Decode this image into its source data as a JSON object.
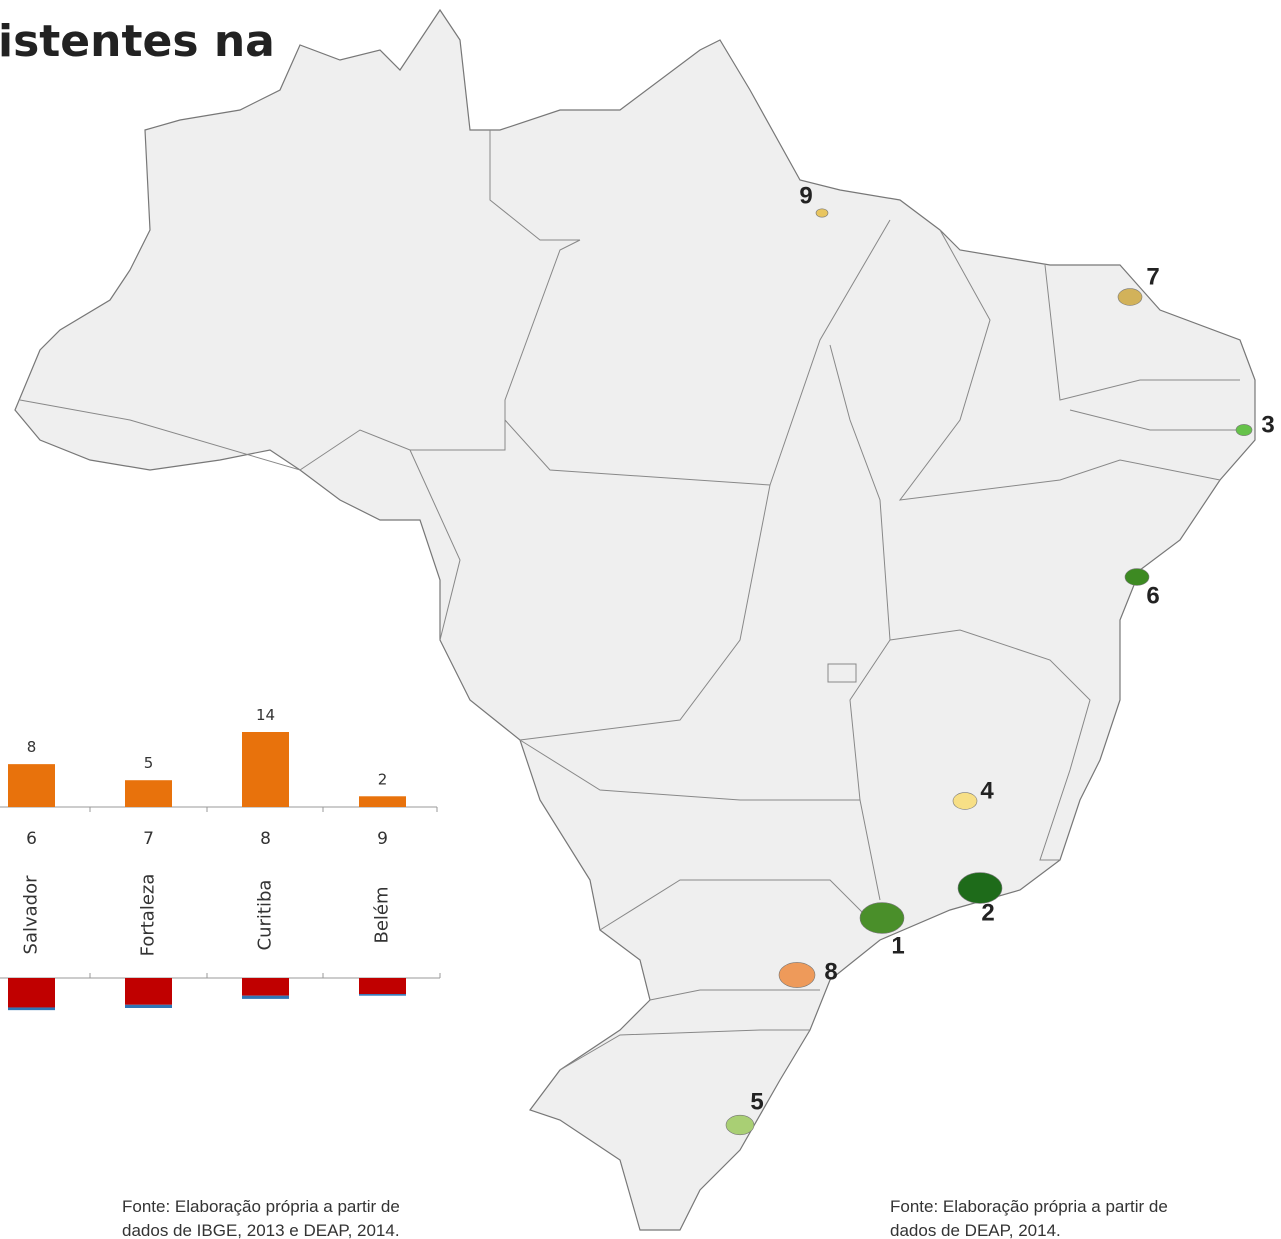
{
  "title": "istentes na",
  "map": {
    "labels": [
      {
        "text": "1",
        "color": "#4a8f2a"
      },
      {
        "text": "2",
        "color": "#1e6b1a"
      },
      {
        "text": "3",
        "color": "#66c24a"
      },
      {
        "text": "4",
        "color": "#f7df86"
      },
      {
        "text": "5",
        "color": "#a9cf74"
      },
      {
        "text": "6",
        "color": "#3d8a22"
      },
      {
        "text": "7",
        "color": "#d2b25a"
      },
      {
        "text": "8",
        "color": "#ee9a5a"
      },
      {
        "text": "9",
        "color": "#e8c560"
      }
    ]
  },
  "chart_data": {
    "type": "bar",
    "categories": [
      "Salvador",
      "Fortaleza",
      "Curitiba",
      "Belém"
    ],
    "numbers": [
      "6",
      "7",
      "8",
      "9"
    ],
    "values": [
      8,
      5,
      14,
      2
    ],
    "color": "#e8720c",
    "lower": {
      "red": [
        5.5,
        5,
        3.3,
        3
      ],
      "blue": [
        0.5,
        0.6,
        0.6,
        0.3
      ],
      "red_color": "#c00000",
      "blue_color": "#2f75b5"
    }
  },
  "sources": [
    {
      "lines": [
        "Fonte: Elaboração própria a partir de",
        "dados de IBGE, 2013 e DEAP, 2014."
      ]
    },
    {
      "lines": [
        "Fonte: Elaboração própria a partir de",
        "dados de DEAP, 2014."
      ]
    }
  ]
}
